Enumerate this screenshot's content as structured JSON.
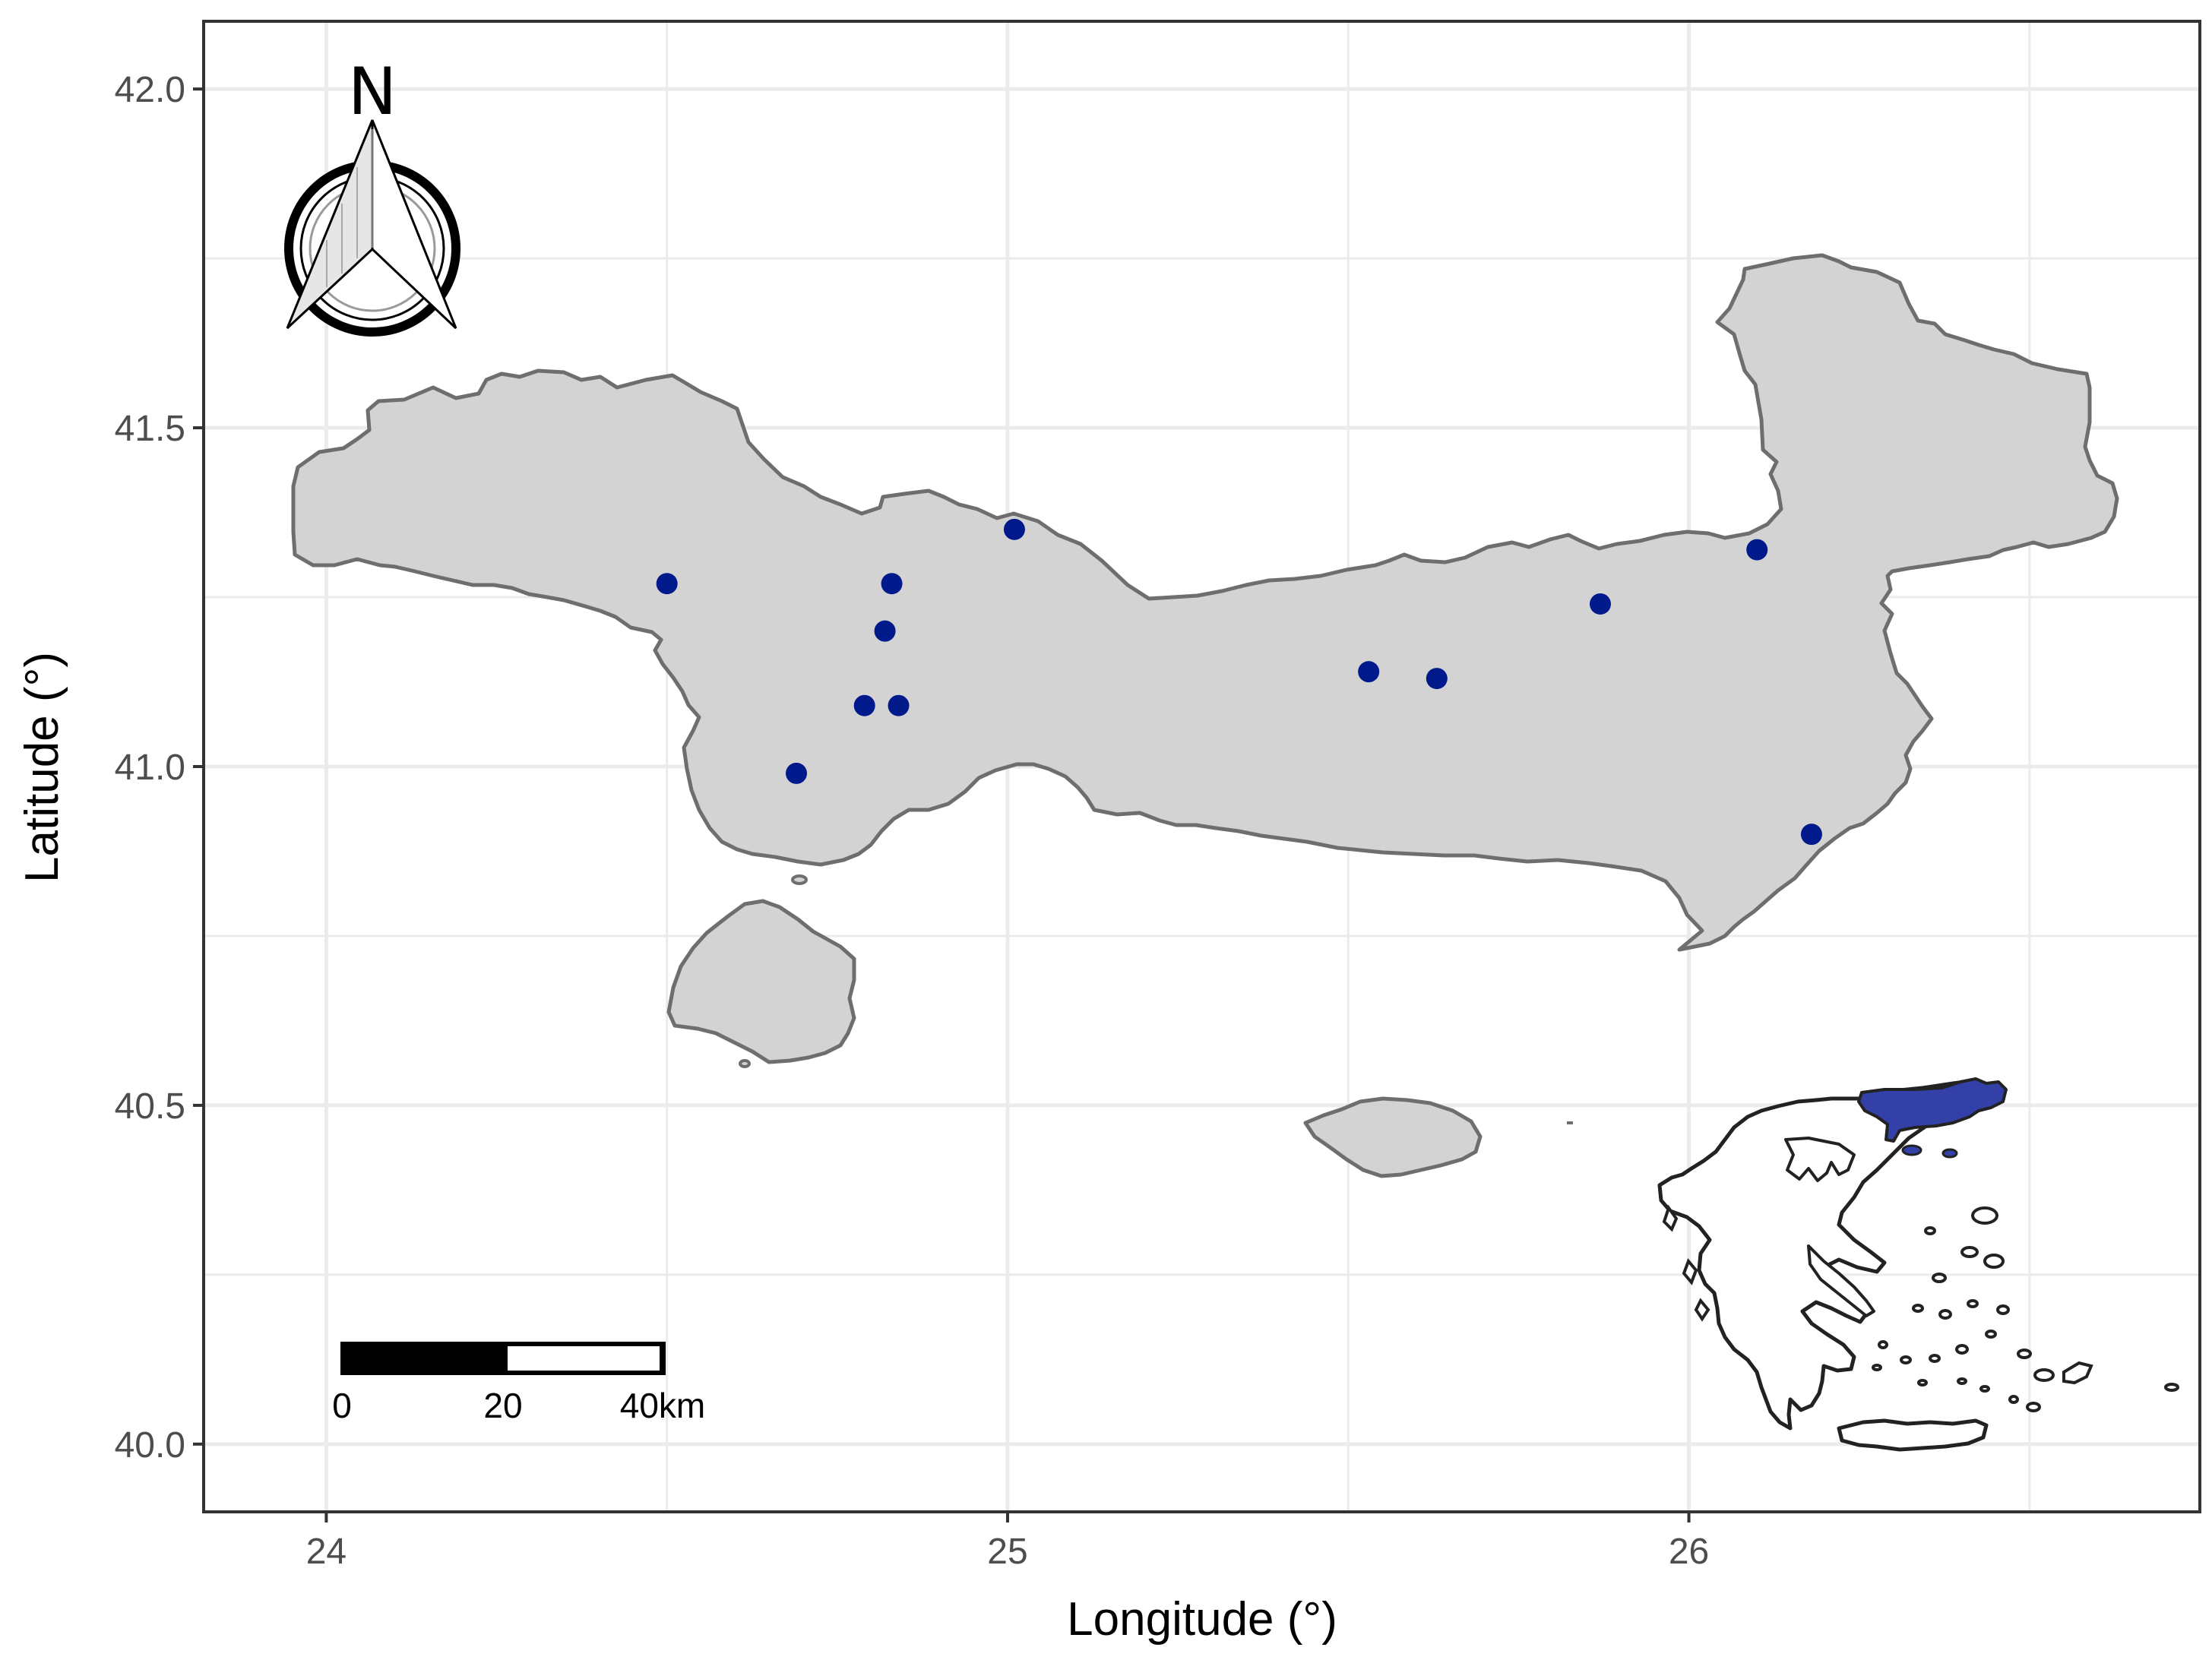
{
  "chart_data": {
    "type": "scatter",
    "title": "",
    "xlabel": "Longitude (°)",
    "ylabel": "Latitude (°)",
    "xlim": [
      23.82,
      26.75
    ],
    "ylim": [
      39.9,
      42.1
    ],
    "x_ticks": [
      24,
      25,
      26
    ],
    "y_ticks": [
      40.0,
      40.5,
      41.0,
      41.5,
      42.0
    ],
    "x_tick_labels": [
      "24",
      "25",
      "26"
    ],
    "y_tick_labels": [
      "40.0",
      "40.5",
      "41.0",
      "41.5",
      "42.0"
    ],
    "grid": true,
    "series": [
      {
        "marker_color": "#001a8c",
        "points": [
          {
            "x": 24.5,
            "y": 41.27
          },
          {
            "x": 24.69,
            "y": 40.99
          },
          {
            "x": 24.79,
            "y": 41.09
          },
          {
            "x": 24.82,
            "y": 41.2
          },
          {
            "x": 24.83,
            "y": 41.27
          },
          {
            "x": 24.84,
            "y": 41.09
          },
          {
            "x": 25.01,
            "y": 41.35
          },
          {
            "x": 25.53,
            "y": 41.14
          },
          {
            "x": 25.63,
            "y": 41.13
          },
          {
            "x": 25.87,
            "y": 41.24
          },
          {
            "x": 26.1,
            "y": 41.32
          },
          {
            "x": 26.18,
            "y": 40.9
          }
        ]
      }
    ]
  },
  "map": {
    "land_fill": "#d3d3d3",
    "land_stroke": "#6e6e6e",
    "panel_border": "#333333",
    "grid_color": "#ebebeb",
    "inset_highlight": "#3240a8",
    "inset_outline": "#222222"
  },
  "north_arrow": {
    "label": "N"
  },
  "scale_bar": {
    "labels": [
      "0",
      "20",
      "40km"
    ]
  }
}
